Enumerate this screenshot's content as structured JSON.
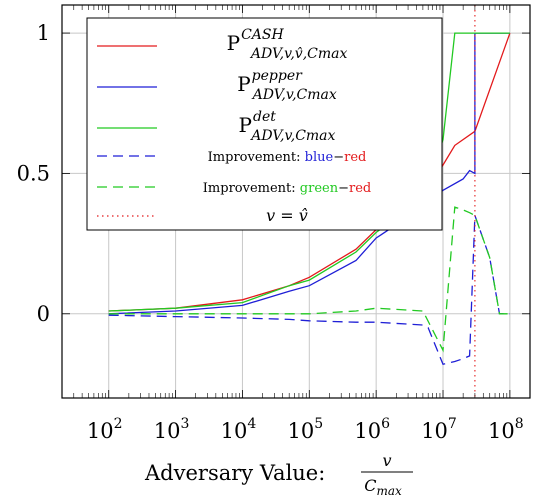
{
  "chart_data": {
    "type": "line",
    "xscale": "log",
    "xlim": [
      20,
      200000000
    ],
    "ylim": [
      -0.3,
      1.1
    ],
    "grid": true,
    "legend_position": "top-left",
    "xlabel_prefix": "Adversary Value:",
    "xlabel_frac_num": "v",
    "xlabel_frac_den_main": "C",
    "xlabel_frac_den_sub": "max",
    "x_ticks": [
      {
        "value": 100,
        "label_base": "10",
        "label_exp": "2"
      },
      {
        "value": 1000,
        "label_base": "10",
        "label_exp": "3"
      },
      {
        "value": 10000,
        "label_base": "10",
        "label_exp": "4"
      },
      {
        "value": 100000,
        "label_base": "10",
        "label_exp": "5"
      },
      {
        "value": 1000000,
        "label_base": "10",
        "label_exp": "6"
      },
      {
        "value": 10000000,
        "label_base": "10",
        "label_exp": "7"
      },
      {
        "value": 100000000,
        "label_base": "10",
        "label_exp": "8"
      }
    ],
    "y_ticks": [
      {
        "value": 0,
        "label": "0"
      },
      {
        "value": 0.5,
        "label": "0.5"
      },
      {
        "value": 1,
        "label": "1"
      }
    ],
    "series": [
      {
        "name_base": "P",
        "name_sup": "CASH",
        "name_sub": "ADV,v,v̂,Cmax",
        "color": "#e31a1c",
        "dash": "solid",
        "points": [
          [
            100,
            0.01
          ],
          [
            1000,
            0.02
          ],
          [
            10000,
            0.05
          ],
          [
            50000,
            0.1
          ],
          [
            100000,
            0.13
          ],
          [
            500000,
            0.23
          ],
          [
            1000000,
            0.3
          ],
          [
            5000000,
            0.42
          ],
          [
            10000000,
            0.53
          ],
          [
            15000000,
            0.6
          ],
          [
            30000000,
            0.65
          ],
          [
            100000000,
            1.0
          ]
        ]
      },
      {
        "name_base": "P",
        "name_sup": "pepper",
        "name_sub": "ADV,v,Cmax",
        "color": "#1f1fd6",
        "dash": "solid",
        "points": [
          [
            100,
            0.0
          ],
          [
            1000,
            0.01
          ],
          [
            10000,
            0.03
          ],
          [
            50000,
            0.08
          ],
          [
            100000,
            0.1
          ],
          [
            500000,
            0.19
          ],
          [
            1000000,
            0.27
          ],
          [
            5000000,
            0.38
          ],
          [
            10000000,
            0.44
          ],
          [
            20000000,
            0.48
          ],
          [
            25000000,
            0.51
          ],
          [
            30000000,
            0.5
          ],
          [
            30000000,
            1.0
          ],
          [
            100000000,
            1.0
          ]
        ]
      },
      {
        "name_base": "P",
        "name_sup": "det",
        "name_sub": "ADV,v,Cmax",
        "color": "#22c922",
        "dash": "solid",
        "points": [
          [
            100,
            0.01
          ],
          [
            1000,
            0.02
          ],
          [
            10000,
            0.04
          ],
          [
            50000,
            0.1
          ],
          [
            100000,
            0.12
          ],
          [
            500000,
            0.22
          ],
          [
            1000000,
            0.29
          ],
          [
            5000000,
            0.41
          ],
          [
            10000000,
            0.62
          ],
          [
            15000000,
            1.0
          ],
          [
            100000000,
            1.0
          ]
        ]
      },
      {
        "name_prefix": "Improvement:",
        "name_a": "blue",
        "name_a_color": "#1f1fd6",
        "name_sep": "−",
        "name_b": "red",
        "name_b_color": "#e31a1c",
        "color": "#1f1fd6",
        "dash": "dashed",
        "points": [
          [
            100,
            -0.005
          ],
          [
            1000,
            -0.01
          ],
          [
            10000,
            -0.015
          ],
          [
            50000,
            -0.02
          ],
          [
            100000,
            -0.025
          ],
          [
            500000,
            -0.03
          ],
          [
            1000000,
            -0.03
          ],
          [
            5000000,
            -0.04
          ],
          [
            6000000,
            -0.05
          ],
          [
            10000000,
            -0.18
          ],
          [
            15000000,
            -0.17
          ],
          [
            20000000,
            -0.16
          ],
          [
            25000000,
            -0.15
          ],
          [
            30000000,
            0.35
          ],
          [
            50000000,
            0.2
          ],
          [
            70000000,
            0.0
          ],
          [
            100000000,
            0.0
          ]
        ]
      },
      {
        "name_prefix": "Improvement:",
        "name_a": "green",
        "name_a_color": "#22c922",
        "name_sep": "−",
        "name_b": "red",
        "name_b_color": "#e31a1c",
        "color": "#22c922",
        "dash": "dashed",
        "points": [
          [
            100,
            0.0
          ],
          [
            1000,
            0.0
          ],
          [
            10000,
            0.0
          ],
          [
            50000,
            0.0
          ],
          [
            100000,
            0.0
          ],
          [
            500000,
            0.01
          ],
          [
            1000000,
            0.02
          ],
          [
            5000000,
            0.01
          ],
          [
            10000000,
            -0.13
          ],
          [
            15000000,
            0.38
          ],
          [
            20000000,
            0.37
          ],
          [
            25000000,
            0.36
          ],
          [
            30000000,
            0.35
          ],
          [
            50000000,
            0.2
          ],
          [
            70000000,
            0.0
          ],
          [
            100000000,
            0.0
          ]
        ]
      },
      {
        "name_math": "v = v̂",
        "color": "#e31a1c",
        "dash": "dotted",
        "x_value": 30000000
      }
    ]
  }
}
